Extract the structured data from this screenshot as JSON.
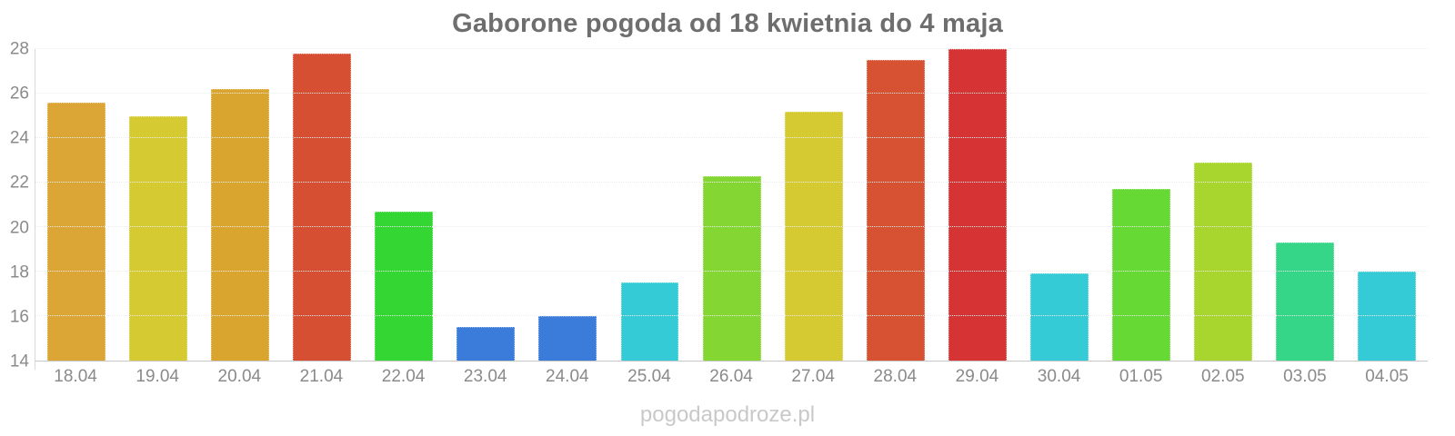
{
  "chart_data": {
    "type": "bar",
    "title": "Gaborone pogoda od 18 kwietnia do 4 maja",
    "categories": [
      "18.04",
      "19.04",
      "20.04",
      "21.04",
      "22.04",
      "23.04",
      "24.04",
      "25.04",
      "26.04",
      "27.04",
      "28.04",
      "29.04",
      "30.04",
      "01.05",
      "02.05",
      "03.05",
      "04.05"
    ],
    "values": [
      25.6,
      25.0,
      26.2,
      27.8,
      20.7,
      15.5,
      16.0,
      17.5,
      22.3,
      25.2,
      27.5,
      28.0,
      17.9,
      21.7,
      22.9,
      19.3,
      18.0
    ],
    "bar_colors": [
      "#dba636",
      "#d6ca32",
      "#d9a52e",
      "#d64f33",
      "#33d633",
      "#3b7bd9",
      "#3b7bd9",
      "#35cbd6",
      "#84d633",
      "#d6ca32",
      "#d75233",
      "#d63434",
      "#35cbd6",
      "#67d935",
      "#a8d62e",
      "#35d687",
      "#35cbd6"
    ],
    "xlabel": "",
    "ylabel": "",
    "ylim": [
      14,
      28
    ],
    "yticks": [
      14,
      16,
      18,
      20,
      22,
      24,
      26,
      28
    ],
    "grid": true,
    "legend": false
  },
  "watermark": "pogodapodroze.pl",
  "colors": {
    "background": "#ffffff",
    "title": "#6e6e6e",
    "tick_labels": "#8a8a8a",
    "gridline": "#ececec",
    "axis_line_vertical": "#d8d8d8",
    "axis_line_horizontal": "#c6c6c6",
    "watermark": "#c9c9c9"
  }
}
